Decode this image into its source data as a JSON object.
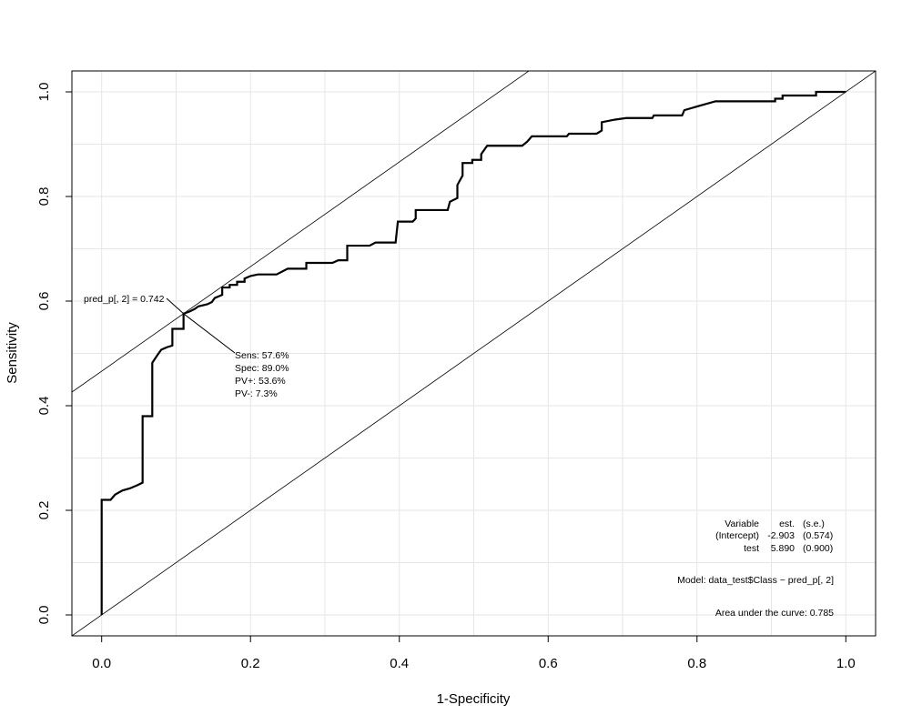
{
  "chart_data": {
    "type": "line",
    "xlabel": "1-Specificity",
    "ylabel": "Sensitivity",
    "xlim": [
      -0.04,
      1.04
    ],
    "ylim": [
      -0.04,
      1.04
    ],
    "x_ticks": [
      0.0,
      0.2,
      0.4,
      0.6,
      0.8,
      1.0
    ],
    "y_ticks": [
      0.0,
      0.2,
      0.4,
      0.6,
      0.8,
      1.0
    ],
    "x_tick_labels": [
      "0.0",
      "0.2",
      "0.4",
      "0.6",
      "0.8",
      "1.0"
    ],
    "y_tick_labels": [
      "0.0",
      "0.2",
      "0.4",
      "0.6",
      "0.8",
      "1.0"
    ],
    "grid": true,
    "series": [
      {
        "points": [
          [
            0.0,
            0.0
          ],
          [
            0.0,
            0.22
          ],
          [
            0.012,
            0.22
          ],
          [
            0.018,
            0.23
          ],
          [
            0.028,
            0.238
          ],
          [
            0.038,
            0.242
          ],
          [
            0.048,
            0.248
          ],
          [
            0.055,
            0.253
          ],
          [
            0.055,
            0.38
          ],
          [
            0.068,
            0.38
          ],
          [
            0.068,
            0.482
          ],
          [
            0.075,
            0.497
          ],
          [
            0.08,
            0.507
          ],
          [
            0.088,
            0.512
          ],
          [
            0.095,
            0.515
          ],
          [
            0.095,
            0.547
          ],
          [
            0.11,
            0.547
          ],
          [
            0.11,
            0.576
          ],
          [
            0.118,
            0.58
          ],
          [
            0.125,
            0.585
          ],
          [
            0.13,
            0.59
          ],
          [
            0.142,
            0.594
          ],
          [
            0.148,
            0.598
          ],
          [
            0.152,
            0.606
          ],
          [
            0.162,
            0.612
          ],
          [
            0.162,
            0.626
          ],
          [
            0.172,
            0.626
          ],
          [
            0.172,
            0.631
          ],
          [
            0.182,
            0.631
          ],
          [
            0.182,
            0.637
          ],
          [
            0.192,
            0.637
          ],
          [
            0.192,
            0.643
          ],
          [
            0.2,
            0.648
          ],
          [
            0.21,
            0.651
          ],
          [
            0.235,
            0.651
          ],
          [
            0.25,
            0.662
          ],
          [
            0.275,
            0.662
          ],
          [
            0.275,
            0.673
          ],
          [
            0.31,
            0.673
          ],
          [
            0.318,
            0.678
          ],
          [
            0.33,
            0.678
          ],
          [
            0.33,
            0.706
          ],
          [
            0.36,
            0.706
          ],
          [
            0.368,
            0.712
          ],
          [
            0.395,
            0.712
          ],
          [
            0.398,
            0.752
          ],
          [
            0.418,
            0.752
          ],
          [
            0.422,
            0.758
          ],
          [
            0.422,
            0.774
          ],
          [
            0.465,
            0.774
          ],
          [
            0.468,
            0.79
          ],
          [
            0.478,
            0.797
          ],
          [
            0.478,
            0.822
          ],
          [
            0.485,
            0.84
          ],
          [
            0.485,
            0.864
          ],
          [
            0.498,
            0.864
          ],
          [
            0.498,
            0.87
          ],
          [
            0.51,
            0.87
          ],
          [
            0.51,
            0.881
          ],
          [
            0.518,
            0.897
          ],
          [
            0.565,
            0.897
          ],
          [
            0.572,
            0.905
          ],
          [
            0.578,
            0.915
          ],
          [
            0.625,
            0.915
          ],
          [
            0.628,
            0.92
          ],
          [
            0.665,
            0.92
          ],
          [
            0.672,
            0.926
          ],
          [
            0.672,
            0.942
          ],
          [
            0.69,
            0.947
          ],
          [
            0.705,
            0.95
          ],
          [
            0.74,
            0.95
          ],
          [
            0.742,
            0.955
          ],
          [
            0.78,
            0.955
          ],
          [
            0.783,
            0.965
          ],
          [
            0.8,
            0.972
          ],
          [
            0.825,
            0.982
          ],
          [
            0.905,
            0.982
          ],
          [
            0.905,
            0.987
          ],
          [
            0.915,
            0.987
          ],
          [
            0.915,
            0.993
          ],
          [
            0.96,
            0.993
          ],
          [
            0.96,
            1.0
          ],
          [
            1.0,
            1.0
          ]
        ]
      }
    ],
    "reference_lines": [
      {
        "kind": "diagonal",
        "slope": 1,
        "intercept": 0
      },
      {
        "kind": "tangent",
        "slope": 1,
        "intercept": 0.466
      }
    ],
    "cutoff": {
      "x": 0.11,
      "y": 0.576,
      "label": "pred_p[, 2] = 0.742",
      "stats": [
        "Sens: 57.6%",
        "Spec: 89.0%",
        "PV+: 53.6%",
        "PV-: 7.3%"
      ]
    },
    "model_table": {
      "header": [
        "Variable",
        "est.",
        "(s.e.)"
      ],
      "rows": [
        [
          "(Intercept)",
          "-2.903",
          "(0.574)"
        ],
        [
          "test",
          "5.890",
          "(0.900)"
        ]
      ]
    },
    "model_formula": "Model:  data_test$Class ~ pred_p[, 2]",
    "auc_text": "Area under the curve: 0.785"
  }
}
